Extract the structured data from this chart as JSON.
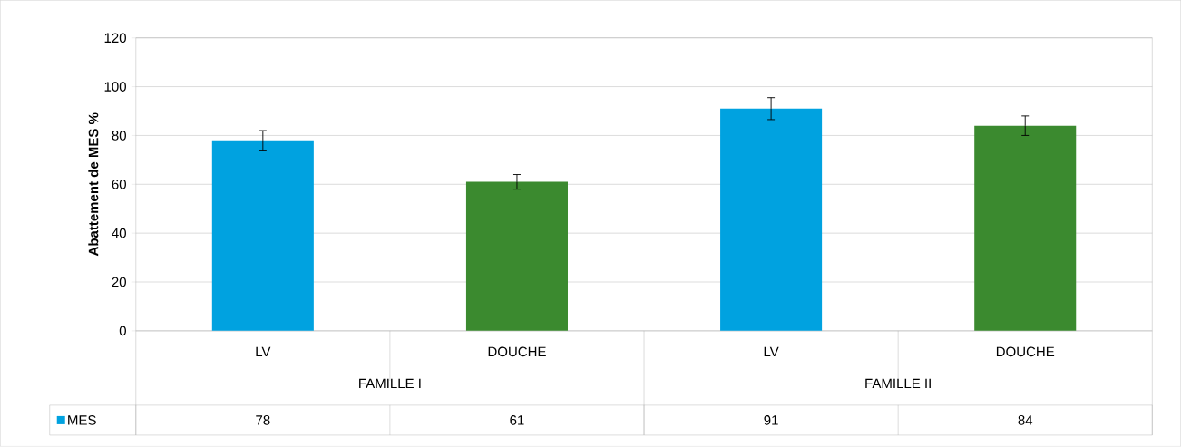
{
  "chart_data": {
    "type": "bar",
    "ylabel": "Abattement de MES %",
    "categories": [
      "LV",
      "DOUCHE",
      "LV",
      "DOUCHE"
    ],
    "series": [
      {
        "name": "MES",
        "values": [
          78,
          61,
          91,
          84
        ],
        "colors": [
          "#00a2e0",
          "#3b8a2f",
          "#00a2e0",
          "#3b8a2f"
        ],
        "errors": [
          4,
          3,
          4.5,
          4
        ]
      }
    ],
    "annotations": [
      "FAMILLE I",
      "FAMILLE II"
    ],
    "ylim": [
      0,
      120
    ],
    "yticks": [
      0,
      20,
      40,
      60,
      80,
      100,
      120
    ],
    "grid": "y",
    "data_labels": true,
    "legend": "bottom left"
  }
}
